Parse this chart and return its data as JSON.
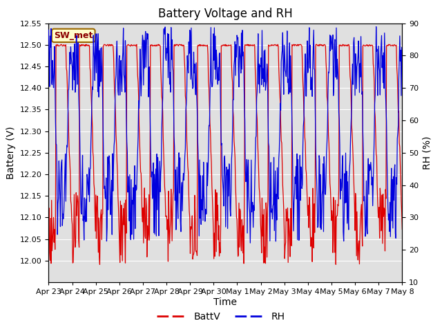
{
  "title": "Battery Voltage and RH",
  "xlabel": "Time",
  "ylabel_left": "Battery (V)",
  "ylabel_right": "RH (%)",
  "ylim_left": [
    11.95,
    12.55
  ],
  "ylim_right": [
    10,
    90
  ],
  "yticks_left": [
    12.0,
    12.05,
    12.1,
    12.15,
    12.2,
    12.25,
    12.3,
    12.35,
    12.4,
    12.45,
    12.5,
    12.55
  ],
  "yticks_right": [
    10,
    20,
    30,
    40,
    50,
    60,
    70,
    80,
    90
  ],
  "xtick_labels": [
    "Apr 23",
    "Apr 24",
    "Apr 25",
    "Apr 26",
    "Apr 27",
    "Apr 28",
    "Apr 29",
    "Apr 30",
    "May 1",
    "May 2",
    "May 3",
    "May 4",
    "May 5",
    "May 6",
    "May 7",
    "May 8"
  ],
  "color_batt": "#dd0000",
  "color_rh": "#0000dd",
  "label_batt": "BattV",
  "label_rh": "RH",
  "station_label": "SW_met",
  "station_label_bg": "#ffffcc",
  "station_label_border": "#996600",
  "bg_plot": "#e0e0e0",
  "bg_figure": "#ffffff",
  "grid_color": "#ffffff",
  "title_fontsize": 12,
  "axis_fontsize": 10,
  "tick_fontsize": 8,
  "legend_fontsize": 10
}
